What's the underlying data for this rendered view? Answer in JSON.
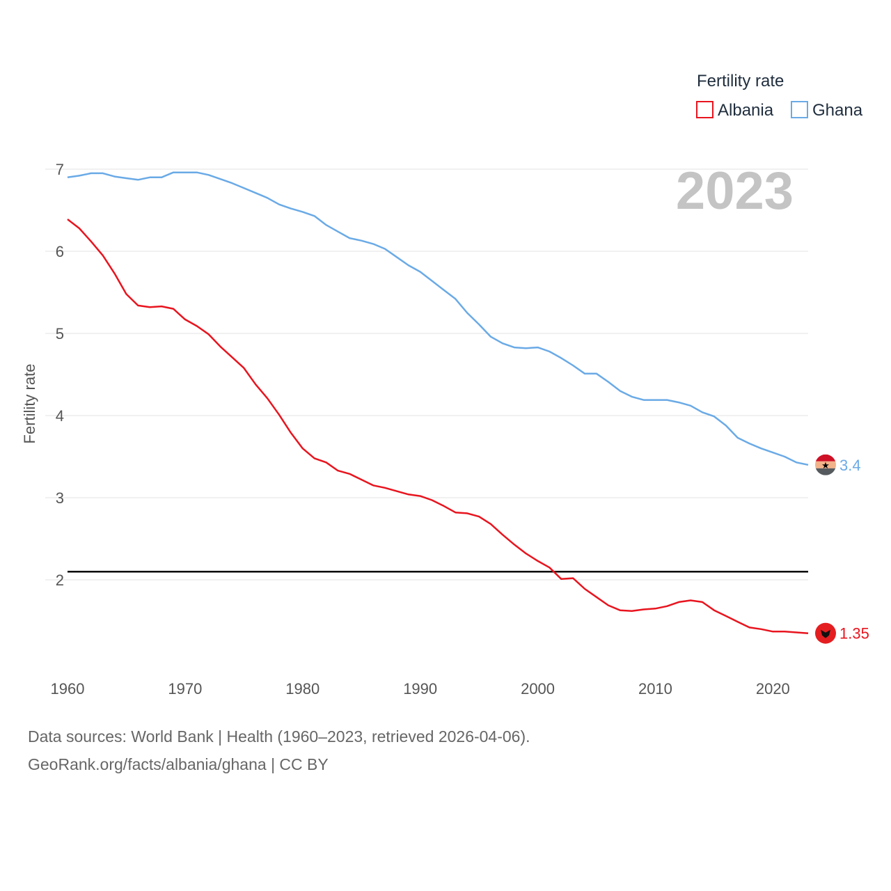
{
  "chart_data": {
    "type": "line",
    "title": "",
    "xlabel": "",
    "ylabel": "Fertility rate",
    "xlim": [
      1960,
      2023
    ],
    "ylim": [
      1,
      7
    ],
    "x_ticks": [
      1960,
      1970,
      1980,
      1990,
      2000,
      2010,
      2020
    ],
    "y_ticks": [
      2,
      3,
      4,
      5,
      6,
      7
    ],
    "grid": true,
    "year_label": "2023",
    "legend": {
      "title": "Fertility rate",
      "position": "top-right"
    },
    "reference_line": {
      "y": 2.1
    },
    "x": [
      1960,
      1961,
      1962,
      1963,
      1964,
      1965,
      1966,
      1967,
      1968,
      1969,
      1970,
      1971,
      1972,
      1973,
      1974,
      1975,
      1976,
      1977,
      1978,
      1979,
      1980,
      1981,
      1982,
      1983,
      1984,
      1985,
      1986,
      1987,
      1988,
      1989,
      1990,
      1991,
      1992,
      1993,
      1994,
      1995,
      1996,
      1997,
      1998,
      1999,
      2000,
      2001,
      2002,
      2003,
      2004,
      2005,
      2006,
      2007,
      2008,
      2009,
      2010,
      2011,
      2012,
      2013,
      2014,
      2015,
      2016,
      2017,
      2018,
      2019,
      2020,
      2021,
      2022,
      2023
    ],
    "series": [
      {
        "name": "Albania",
        "color": "#e8141e",
        "end_label": "1.35",
        "values": [
          6.39,
          6.28,
          6.12,
          5.95,
          5.73,
          5.48,
          5.34,
          5.32,
          5.33,
          5.3,
          5.17,
          5.09,
          4.99,
          4.84,
          4.71,
          4.58,
          4.38,
          4.21,
          4.01,
          3.79,
          3.6,
          3.48,
          3.43,
          3.33,
          3.29,
          3.22,
          3.15,
          3.12,
          3.08,
          3.04,
          3.02,
          2.97,
          2.9,
          2.82,
          2.81,
          2.77,
          2.68,
          2.55,
          2.43,
          2.32,
          2.23,
          2.15,
          2.01,
          2.02,
          1.89,
          1.79,
          1.69,
          1.63,
          1.62,
          1.64,
          1.65,
          1.68,
          1.73,
          1.75,
          1.73,
          1.63,
          1.56,
          1.49,
          1.42,
          1.4,
          1.37,
          1.37,
          1.36,
          1.35
        ]
      },
      {
        "name": "Ghana",
        "color": "#6aaae6",
        "end_label": "3.4",
        "values": [
          6.9,
          6.92,
          6.95,
          6.95,
          6.91,
          6.89,
          6.87,
          6.9,
          6.9,
          6.96,
          6.96,
          6.96,
          6.93,
          6.88,
          6.83,
          6.77,
          6.71,
          6.65,
          6.57,
          6.52,
          6.48,
          6.43,
          6.32,
          6.24,
          6.16,
          6.13,
          6.09,
          6.03,
          5.93,
          5.83,
          5.75,
          5.64,
          5.53,
          5.42,
          5.25,
          5.11,
          4.96,
          4.88,
          4.83,
          4.82,
          4.83,
          4.78,
          4.7,
          4.61,
          4.51,
          4.51,
          4.41,
          4.3,
          4.23,
          4.19,
          4.19,
          4.19,
          4.16,
          4.12,
          4.04,
          3.99,
          3.88,
          3.73,
          3.66,
          3.6,
          3.55,
          3.5,
          3.43,
          3.4
        ]
      }
    ]
  },
  "footer": {
    "line1": "Data sources: World Bank | Health (1960–2023, retrieved 2026-04-06).",
    "line2": "GeoRank.org/facts/albania/ghana | CC BY"
  }
}
